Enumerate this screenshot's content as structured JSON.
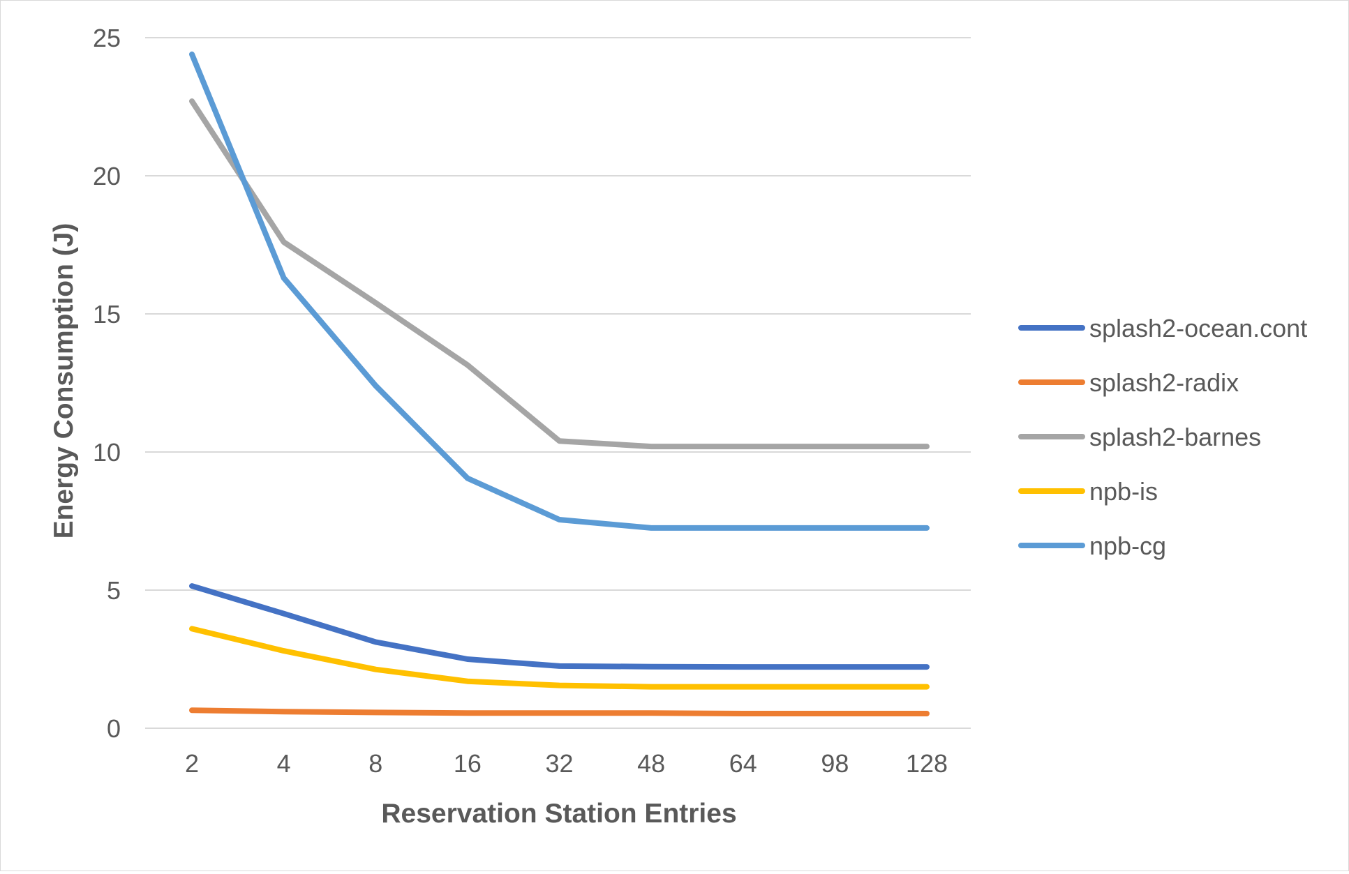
{
  "chart_data": {
    "type": "line",
    "title": "",
    "xlabel": "Reservation Station Entries",
    "ylabel": "Energy Consumption (J)",
    "categories": [
      "2",
      "4",
      "8",
      "16",
      "32",
      "48",
      "64",
      "98",
      "128"
    ],
    "ylim": [
      0,
      25
    ],
    "yticks": [
      0,
      5,
      10,
      15,
      20,
      25
    ],
    "grid": true,
    "legend_position": "right",
    "series": [
      {
        "name": "splash2-ocean.cont",
        "color": "#4472c4",
        "values": [
          5.15,
          4.15,
          3.12,
          2.5,
          2.25,
          2.23,
          2.22,
          2.22,
          2.22
        ]
      },
      {
        "name": "splash2-radix",
        "color": "#ed7d31",
        "values": [
          0.65,
          0.6,
          0.57,
          0.55,
          0.55,
          0.55,
          0.53,
          0.53,
          0.53
        ]
      },
      {
        "name": "splash2-barnes",
        "color": "#a5a5a5",
        "values": [
          22.7,
          17.6,
          15.4,
          13.15,
          10.4,
          10.2,
          10.2,
          10.2,
          10.2
        ]
      },
      {
        "name": "npb-is",
        "color": "#ffc000",
        "values": [
          3.6,
          2.8,
          2.13,
          1.7,
          1.55,
          1.5,
          1.5,
          1.5,
          1.5
        ]
      },
      {
        "name": "npb-cg",
        "color": "#5b9bd5",
        "values": [
          24.4,
          16.3,
          12.4,
          9.05,
          7.55,
          7.25,
          7.25,
          7.25,
          7.25
        ]
      }
    ]
  }
}
